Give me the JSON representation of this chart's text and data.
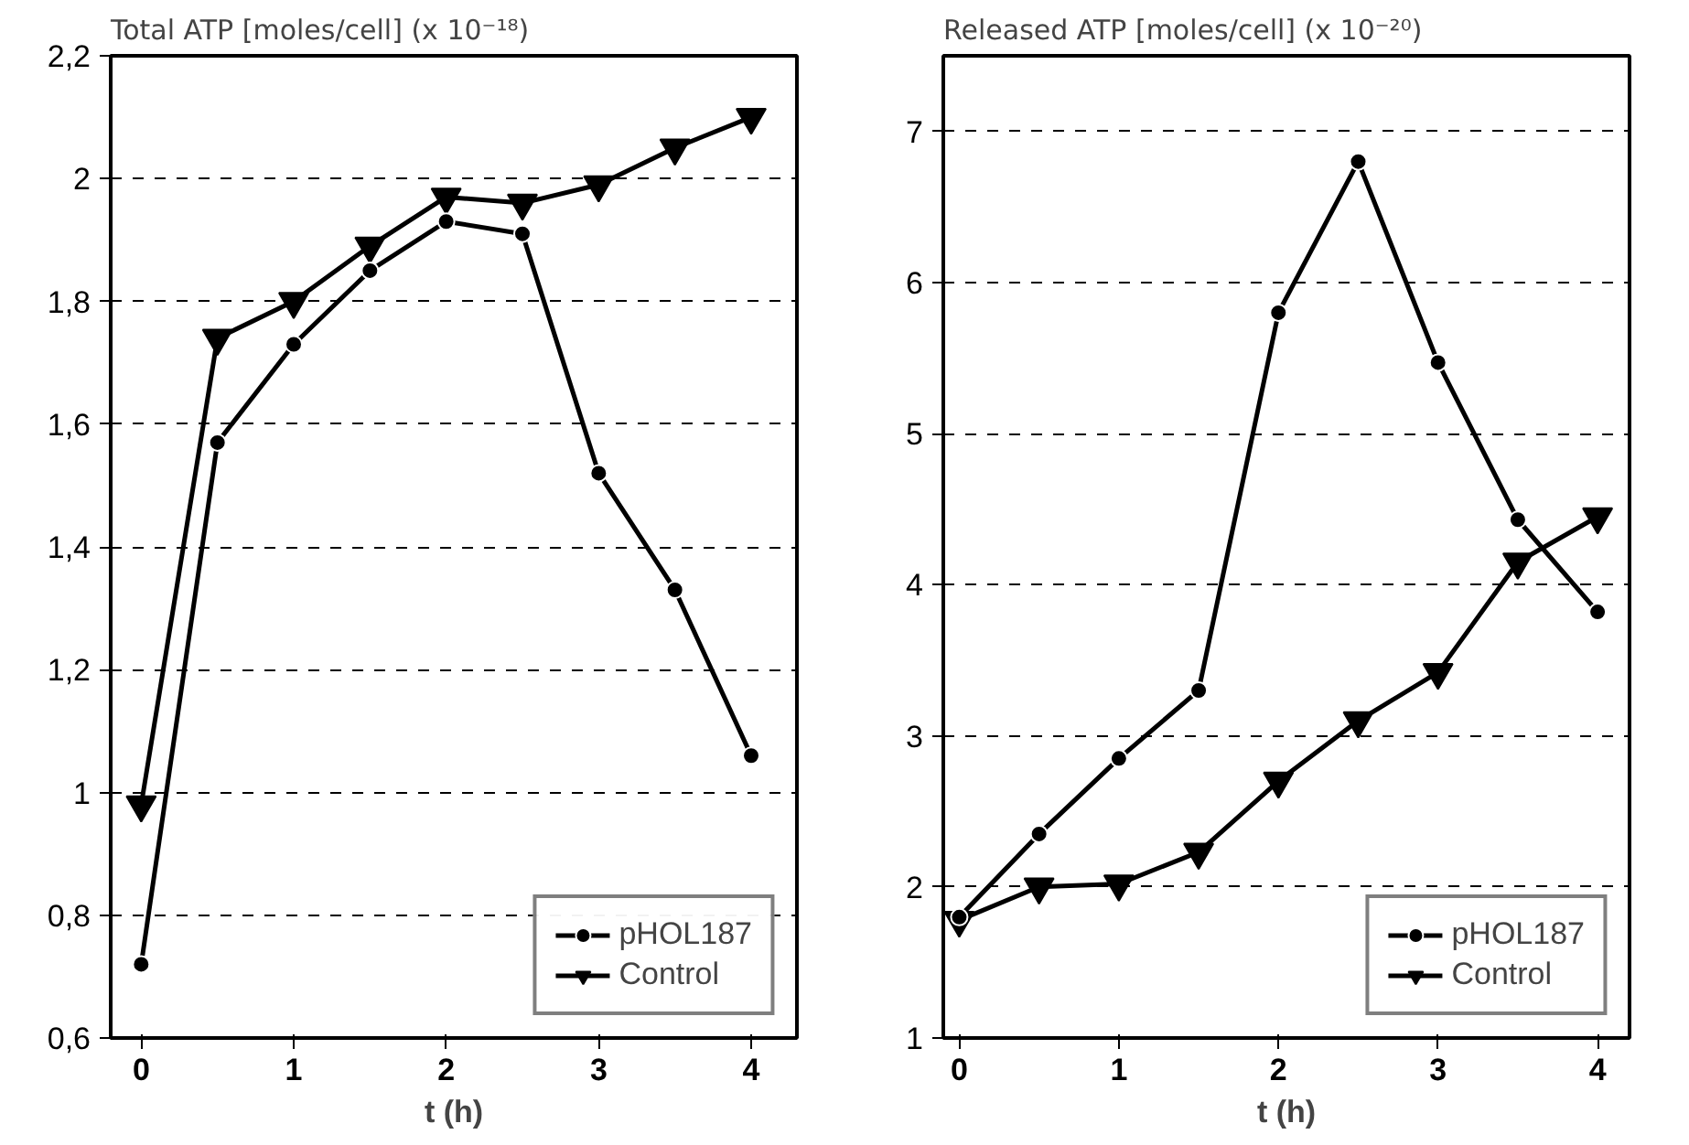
{
  "chart_data": [
    {
      "type": "line",
      "title": "Total ATP [moles/cell] (x 10⁻¹⁸)",
      "xlabel": "t (h)",
      "x": [
        0,
        0.5,
        1,
        1.5,
        2,
        2.5,
        3,
        3.5,
        4
      ],
      "series": [
        {
          "name": "pHOL187",
          "color": "#000000",
          "marker": "circle",
          "values": [
            0.72,
            1.57,
            1.73,
            1.85,
            1.93,
            1.91,
            1.52,
            1.33,
            1.06
          ]
        },
        {
          "name": "Control",
          "color": "#000000",
          "marker": "triangle",
          "values": [
            0.98,
            1.74,
            1.8,
            1.89,
            1.97,
            1.96,
            1.99,
            2.05,
            2.1
          ]
        }
      ],
      "xlim": [
        -0.2,
        4.3
      ],
      "xticks": [
        0,
        1,
        2,
        3,
        4
      ],
      "ylim": [
        0.6,
        2.2
      ],
      "yticks": [
        {
          "value": 0.6,
          "label": "0,6"
        },
        {
          "value": 0.8,
          "label": "0,8"
        },
        1,
        {
          "value": 1.2,
          "label": "1,2"
        },
        {
          "value": 1.4,
          "label": "1,4"
        },
        {
          "value": 1.6,
          "label": "1,6"
        },
        {
          "value": 1.8,
          "label": "1,8"
        },
        2,
        {
          "value": 2.2,
          "label": "2,2"
        }
      ],
      "grid": "y",
      "legend": "bottom right",
      "line_style": "solid"
    },
    {
      "type": "line",
      "title": "Released ATP [moles/cell] (x 10⁻²⁰)",
      "xlabel": "t (h)",
      "x": [
        0,
        0.5,
        1,
        1.5,
        2,
        2.5,
        3,
        3.5,
        4
      ],
      "series": [
        {
          "name": "pHOL187",
          "color": "#000000",
          "marker": "circle",
          "values": [
            1.8,
            2.35,
            2.85,
            3.3,
            5.8,
            6.8,
            5.47,
            4.43,
            3.82
          ]
        },
        {
          "name": "Control",
          "color": "#000000",
          "marker": "triangle",
          "values": [
            1.78,
            2.0,
            2.02,
            2.23,
            2.7,
            3.1,
            3.42,
            4.15,
            4.45
          ]
        }
      ],
      "xlim": [
        -0.1,
        4.2
      ],
      "xticks": [
        0,
        1,
        2,
        3,
        4
      ],
      "ylim": [
        1,
        7.5
      ],
      "yticks": [
        1,
        2,
        3,
        4,
        5,
        6,
        7
      ],
      "grid": "y",
      "legend": "bottom right",
      "line_style": "solid"
    }
  ]
}
